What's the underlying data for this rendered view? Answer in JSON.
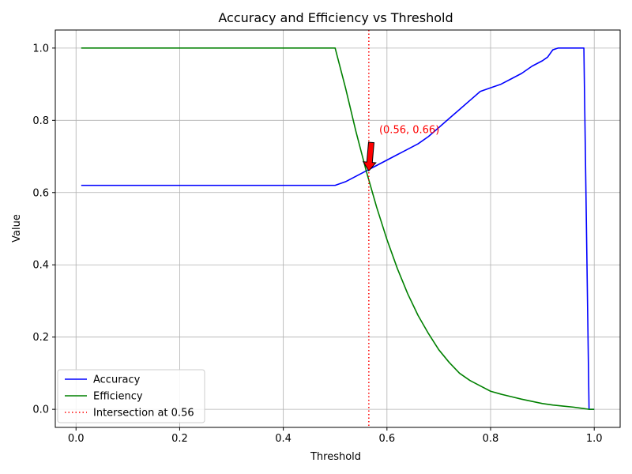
{
  "chart_data": {
    "type": "line",
    "title": "Accuracy and Efficiency vs Threshold",
    "xlabel": "Threshold",
    "ylabel": "Value",
    "xlim": [
      -0.04,
      1.05
    ],
    "ylim": [
      -0.05,
      1.05
    ],
    "xticks": [
      0.0,
      0.2,
      0.4,
      0.6,
      0.8,
      1.0
    ],
    "xtick_labels": [
      "0.0",
      "0.2",
      "0.4",
      "0.6",
      "0.8",
      "1.0"
    ],
    "yticks": [
      0.0,
      0.2,
      0.4,
      0.6,
      0.8,
      1.0
    ],
    "ytick_labels": [
      "0.0",
      "0.2",
      "0.4",
      "0.6",
      "0.8",
      "1.0"
    ],
    "grid": true,
    "legend_position": "lower-left",
    "series": [
      {
        "name": "Accuracy",
        "color": "#0000ff",
        "x": [
          0.01,
          0.1,
          0.2,
          0.3,
          0.4,
          0.5,
          0.52,
          0.54,
          0.56,
          0.58,
          0.6,
          0.62,
          0.64,
          0.66,
          0.68,
          0.7,
          0.72,
          0.74,
          0.76,
          0.78,
          0.8,
          0.82,
          0.84,
          0.86,
          0.88,
          0.9,
          0.91,
          0.92,
          0.93,
          0.95,
          0.97,
          0.98,
          0.99,
          1.0
        ],
        "y": [
          0.62,
          0.62,
          0.62,
          0.62,
          0.62,
          0.62,
          0.63,
          0.645,
          0.66,
          0.675,
          0.69,
          0.705,
          0.72,
          0.735,
          0.755,
          0.78,
          0.805,
          0.83,
          0.855,
          0.88,
          0.89,
          0.9,
          0.915,
          0.93,
          0.95,
          0.965,
          0.975,
          0.995,
          1.0,
          1.0,
          1.0,
          1.0,
          0.0,
          0.0
        ]
      },
      {
        "name": "Efficiency",
        "color": "#008000",
        "x": [
          0.01,
          0.1,
          0.2,
          0.3,
          0.4,
          0.5,
          0.52,
          0.54,
          0.56,
          0.58,
          0.6,
          0.62,
          0.64,
          0.66,
          0.68,
          0.7,
          0.72,
          0.74,
          0.76,
          0.78,
          0.8,
          0.82,
          0.84,
          0.86,
          0.88,
          0.9,
          0.92,
          0.94,
          0.96,
          0.98,
          0.99,
          1.0
        ],
        "y": [
          1.0,
          1.0,
          1.0,
          1.0,
          1.0,
          1.0,
          0.89,
          0.77,
          0.66,
          0.56,
          0.47,
          0.39,
          0.32,
          0.26,
          0.21,
          0.165,
          0.13,
          0.1,
          0.08,
          0.065,
          0.05,
          0.042,
          0.035,
          0.028,
          0.022,
          0.016,
          0.012,
          0.009,
          0.006,
          0.002,
          0.0,
          0.0
        ]
      },
      {
        "name": "Intersection at 0.56",
        "color": "#ff0000",
        "style": "dotted",
        "vertical_line_x": 0.565
      }
    ],
    "annotation": {
      "text": "(0.56, 0.66)",
      "point": [
        0.565,
        0.66
      ],
      "text_position": [
        0.585,
        0.765
      ],
      "color": "#ff0000",
      "arrow_color": "#ff0000"
    }
  }
}
